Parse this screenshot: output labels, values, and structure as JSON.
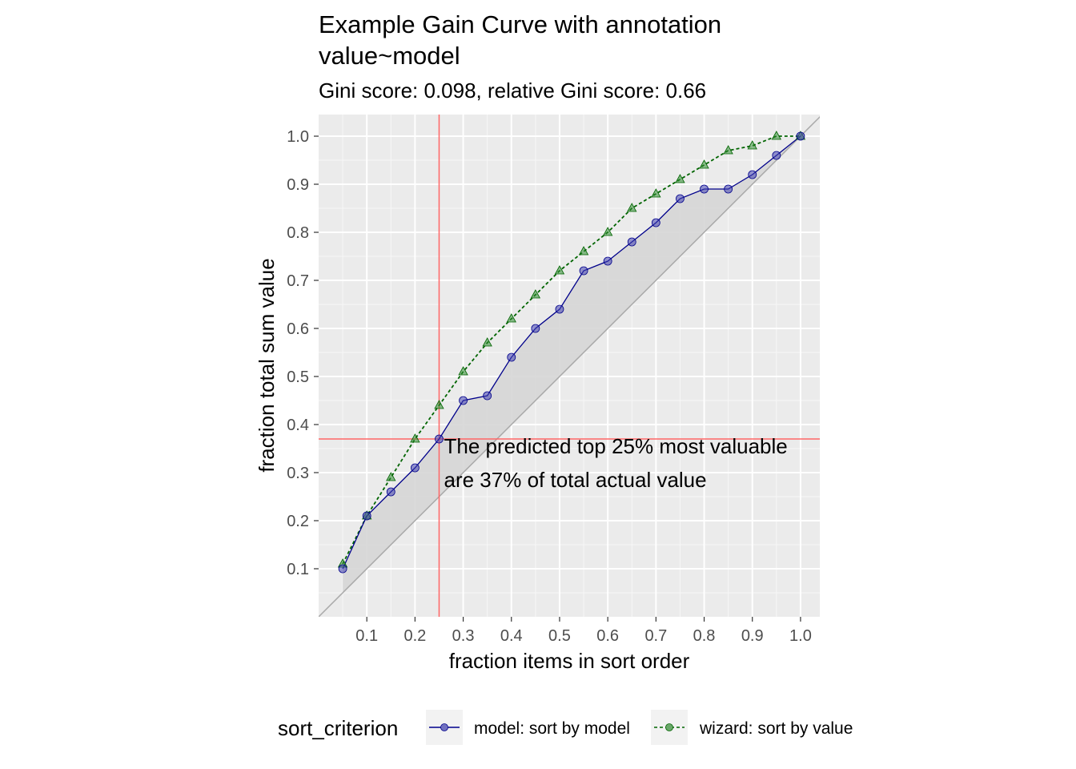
{
  "chart_data": {
    "type": "line",
    "title_line1": "Example Gain Curve with annotation",
    "title_line2": "value~model",
    "subtitle": "Gini score: 0.098, relative Gini score: 0.66",
    "xlabel": "fraction items in sort order",
    "ylabel": "fraction total sum value",
    "xlim": [
      0,
      1.04
    ],
    "ylim": [
      0,
      1.045
    ],
    "x_ticks": [
      0.1,
      0.2,
      0.3,
      0.4,
      0.5,
      0.6,
      0.7,
      0.8,
      0.9,
      1.0
    ],
    "y_ticks": [
      0.1,
      0.2,
      0.3,
      0.4,
      0.5,
      0.6,
      0.7,
      0.8,
      0.9,
      1.0
    ],
    "x_tick_labels": [
      "0.1",
      "0.2",
      "0.3",
      "0.4",
      "0.5",
      "0.6",
      "0.7",
      "0.8",
      "0.9",
      "1.0"
    ],
    "y_tick_labels": [
      "0.1",
      "0.2",
      "0.3",
      "0.4",
      "0.5",
      "0.6",
      "0.7",
      "0.8",
      "0.9",
      "1.0"
    ],
    "grid": true,
    "x": [
      0.05,
      0.1,
      0.15,
      0.2,
      0.25,
      0.3,
      0.35,
      0.4,
      0.45,
      0.5,
      0.55,
      0.6,
      0.65,
      0.7,
      0.75,
      0.8,
      0.85,
      0.9,
      0.95,
      1.0
    ],
    "series": [
      {
        "name": "model: sort by model",
        "color": "#00008b",
        "marker": "circle",
        "values": [
          0.1,
          0.21,
          0.26,
          0.31,
          0.37,
          0.45,
          0.46,
          0.54,
          0.6,
          0.64,
          0.72,
          0.74,
          0.78,
          0.82,
          0.87,
          0.89,
          0.89,
          0.92,
          0.96,
          1.0
        ]
      },
      {
        "name": "wizard: sort by value",
        "color": "#006400",
        "marker": "triangle",
        "values": [
          0.11,
          0.21,
          0.29,
          0.37,
          0.44,
          0.51,
          0.57,
          0.62,
          0.67,
          0.72,
          0.76,
          0.8,
          0.85,
          0.88,
          0.91,
          0.94,
          0.97,
          0.98,
          1.0,
          1.0
        ]
      }
    ],
    "diagonal_reference": true,
    "annotation": {
      "vline_x": 0.25,
      "hline_y": 0.37,
      "color": "#ff6666",
      "text_line1": "The predicted top 25% most valuable",
      "text_line2": "are 37% of total actual value",
      "text_x": 0.26,
      "text_y": 0.34
    },
    "legend": {
      "title": "sort_criterion",
      "placement": "bottom"
    },
    "colors": {
      "panel_background": "#ebebeb",
      "grid": "#ffffff",
      "shade": "#d6d6d6"
    }
  }
}
